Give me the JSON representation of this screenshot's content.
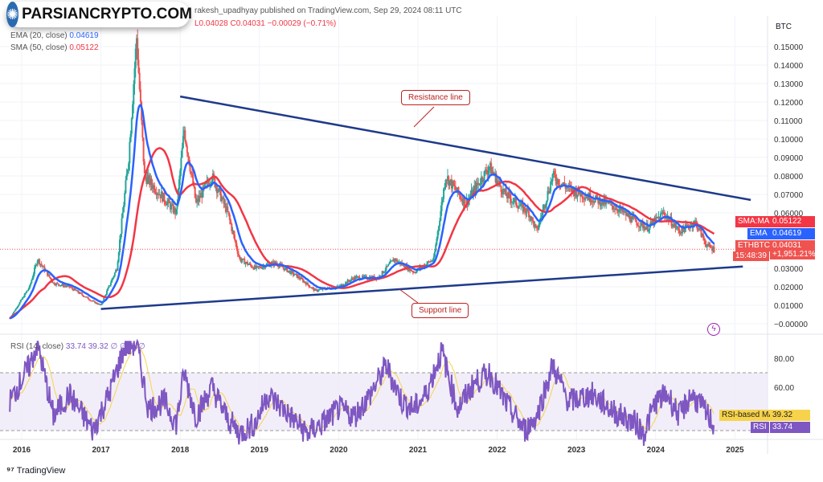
{
  "header": {
    "publisher": "rakesh_upadhyay published on TradingView.com, Sep 29, 2024 08:11 UTC",
    "ohlc": "L0.04028  C0.04031  −0.00029 (−0.71%)",
    "ema_label": "EMA (20, close)",
    "ema_value": "0.04619",
    "sma_label": "SMA (50, close)",
    "sma_value": "0.05122",
    "rsi_label": "RSI (14, close)",
    "rsi_values": "33.74  39.32  ∅  ∅  ∅  ∅"
  },
  "logo_text": "PARSIANCRYPTO.COM",
  "currency": "BTC",
  "colors": {
    "up": "#26a69a",
    "down": "#ef5350",
    "ema": "#2962ff",
    "sma": "#f23645",
    "trend": "#1e3a8a",
    "rsi": "#7e57c2",
    "rsi_ma": "#f7d34b"
  },
  "tags": {
    "sma_name": "SMA:MA",
    "sma_value": "0.05122",
    "ema_name": "EMA",
    "ema_value": "0.04619",
    "symbol": "ETHBTC",
    "price": "0.04031",
    "change": "+1,951.21%",
    "countdown": "15:48:39",
    "rsi_ma_name": "RSI-based MA",
    "rsi_ma_value": "39.32",
    "rsi_name": "RSI",
    "rsi_value": "33.74"
  },
  "annotations": {
    "resistance": "Resistance line",
    "support": "Support line"
  },
  "footer": {
    "brand": "TradingView"
  },
  "chart_data": {
    "type": "candlestick",
    "title": "ETHBTC",
    "ylim": [
      -0.005,
      0.16
    ],
    "yticks": [
      "0.15000",
      "0.14000",
      "0.13000",
      "0.12000",
      "0.11000",
      "0.10000",
      "0.09000",
      "0.08000",
      "0.07000",
      "0.06000",
      "0.03000",
      "0.02000",
      "0.01000",
      "−0.00000"
    ],
    "ytick_values": [
      0.15,
      0.14,
      0.13,
      0.12,
      0.11,
      0.1,
      0.09,
      0.08,
      0.07,
      0.06,
      0.03,
      0.02,
      0.01,
      0
    ],
    "xticks": [
      "2016",
      "2017",
      "2018",
      "2019",
      "2020",
      "2021",
      "2022",
      "2023",
      "2024",
      "2025"
    ],
    "xlim": [
      2015.75,
      2025.35
    ],
    "price_path": [
      [
        2015.85,
        0.003
      ],
      [
        2016.1,
        0.02
      ],
      [
        2016.2,
        0.035
      ],
      [
        2016.4,
        0.022
      ],
      [
        2016.6,
        0.02
      ],
      [
        2016.9,
        0.012
      ],
      [
        2017.0,
        0.01
      ],
      [
        2017.2,
        0.03
      ],
      [
        2017.35,
        0.09
      ],
      [
        2017.45,
        0.155
      ],
      [
        2017.55,
        0.08
      ],
      [
        2017.75,
        0.07
      ],
      [
        2017.95,
        0.06
      ],
      [
        2018.05,
        0.105
      ],
      [
        2018.2,
        0.065
      ],
      [
        2018.4,
        0.08
      ],
      [
        2018.6,
        0.06
      ],
      [
        2018.75,
        0.035
      ],
      [
        2018.95,
        0.03
      ],
      [
        2019.2,
        0.033
      ],
      [
        2019.5,
        0.025
      ],
      [
        2019.7,
        0.018
      ],
      [
        2020.0,
        0.02
      ],
      [
        2020.2,
        0.025
      ],
      [
        2020.5,
        0.025
      ],
      [
        2020.7,
        0.035
      ],
      [
        2020.95,
        0.028
      ],
      [
        2021.2,
        0.035
      ],
      [
        2021.35,
        0.08
      ],
      [
        2021.6,
        0.065
      ],
      [
        2021.9,
        0.085
      ],
      [
        2022.1,
        0.07
      ],
      [
        2022.4,
        0.06
      ],
      [
        2022.5,
        0.05
      ],
      [
        2022.7,
        0.08
      ],
      [
        2022.9,
        0.073
      ],
      [
        2023.2,
        0.068
      ],
      [
        2023.5,
        0.063
      ],
      [
        2023.75,
        0.055
      ],
      [
        2023.9,
        0.052
      ],
      [
        2024.1,
        0.06
      ],
      [
        2024.3,
        0.05
      ],
      [
        2024.5,
        0.055
      ],
      [
        2024.65,
        0.042
      ],
      [
        2024.74,
        0.0403
      ]
    ],
    "trendlines": {
      "resistance": [
        [
          2018.0,
          0.123
        ],
        [
          2025.2,
          0.067
        ]
      ],
      "support": [
        [
          2017.0,
          0.008
        ],
        [
          2025.1,
          0.031
        ]
      ]
    },
    "rsi": {
      "yticks": [
        "80.00",
        "60.00"
      ],
      "ytick_values": [
        80,
        60
      ],
      "ylim": [
        10,
        95
      ],
      "band": [
        30,
        70
      ],
      "values": [
        [
          2015.85,
          50
        ],
        [
          2016.1,
          75
        ],
        [
          2016.2,
          90
        ],
        [
          2016.4,
          40
        ],
        [
          2016.6,
          55
        ],
        [
          2016.9,
          30
        ],
        [
          2017.1,
          55
        ],
        [
          2017.3,
          88
        ],
        [
          2017.45,
          90
        ],
        [
          2017.6,
          45
        ],
        [
          2017.8,
          50
        ],
        [
          2017.95,
          35
        ],
        [
          2018.05,
          70
        ],
        [
          2018.2,
          40
        ],
        [
          2018.4,
          60
        ],
        [
          2018.6,
          38
        ],
        [
          2018.75,
          28
        ],
        [
          2018.95,
          35
        ],
        [
          2019.1,
          55
        ],
        [
          2019.3,
          45
        ],
        [
          2019.6,
          28
        ],
        [
          2019.8,
          35
        ],
        [
          2020.0,
          45
        ],
        [
          2020.2,
          40
        ],
        [
          2020.4,
          55
        ],
        [
          2020.6,
          75
        ],
        [
          2020.8,
          50
        ],
        [
          2020.95,
          45
        ],
        [
          2021.1,
          55
        ],
        [
          2021.3,
          85
        ],
        [
          2021.5,
          45
        ],
        [
          2021.7,
          62
        ],
        [
          2021.9,
          70
        ],
        [
          2022.1,
          50
        ],
        [
          2022.35,
          30
        ],
        [
          2022.5,
          40
        ],
        [
          2022.7,
          75
        ],
        [
          2022.9,
          50
        ],
        [
          2023.2,
          55
        ],
        [
          2023.5,
          42
        ],
        [
          2023.75,
          35
        ],
        [
          2023.85,
          28
        ],
        [
          2024.0,
          50
        ],
        [
          2024.15,
          55
        ],
        [
          2024.3,
          40
        ],
        [
          2024.45,
          55
        ],
        [
          2024.6,
          45
        ],
        [
          2024.74,
          33.74
        ]
      ]
    }
  }
}
